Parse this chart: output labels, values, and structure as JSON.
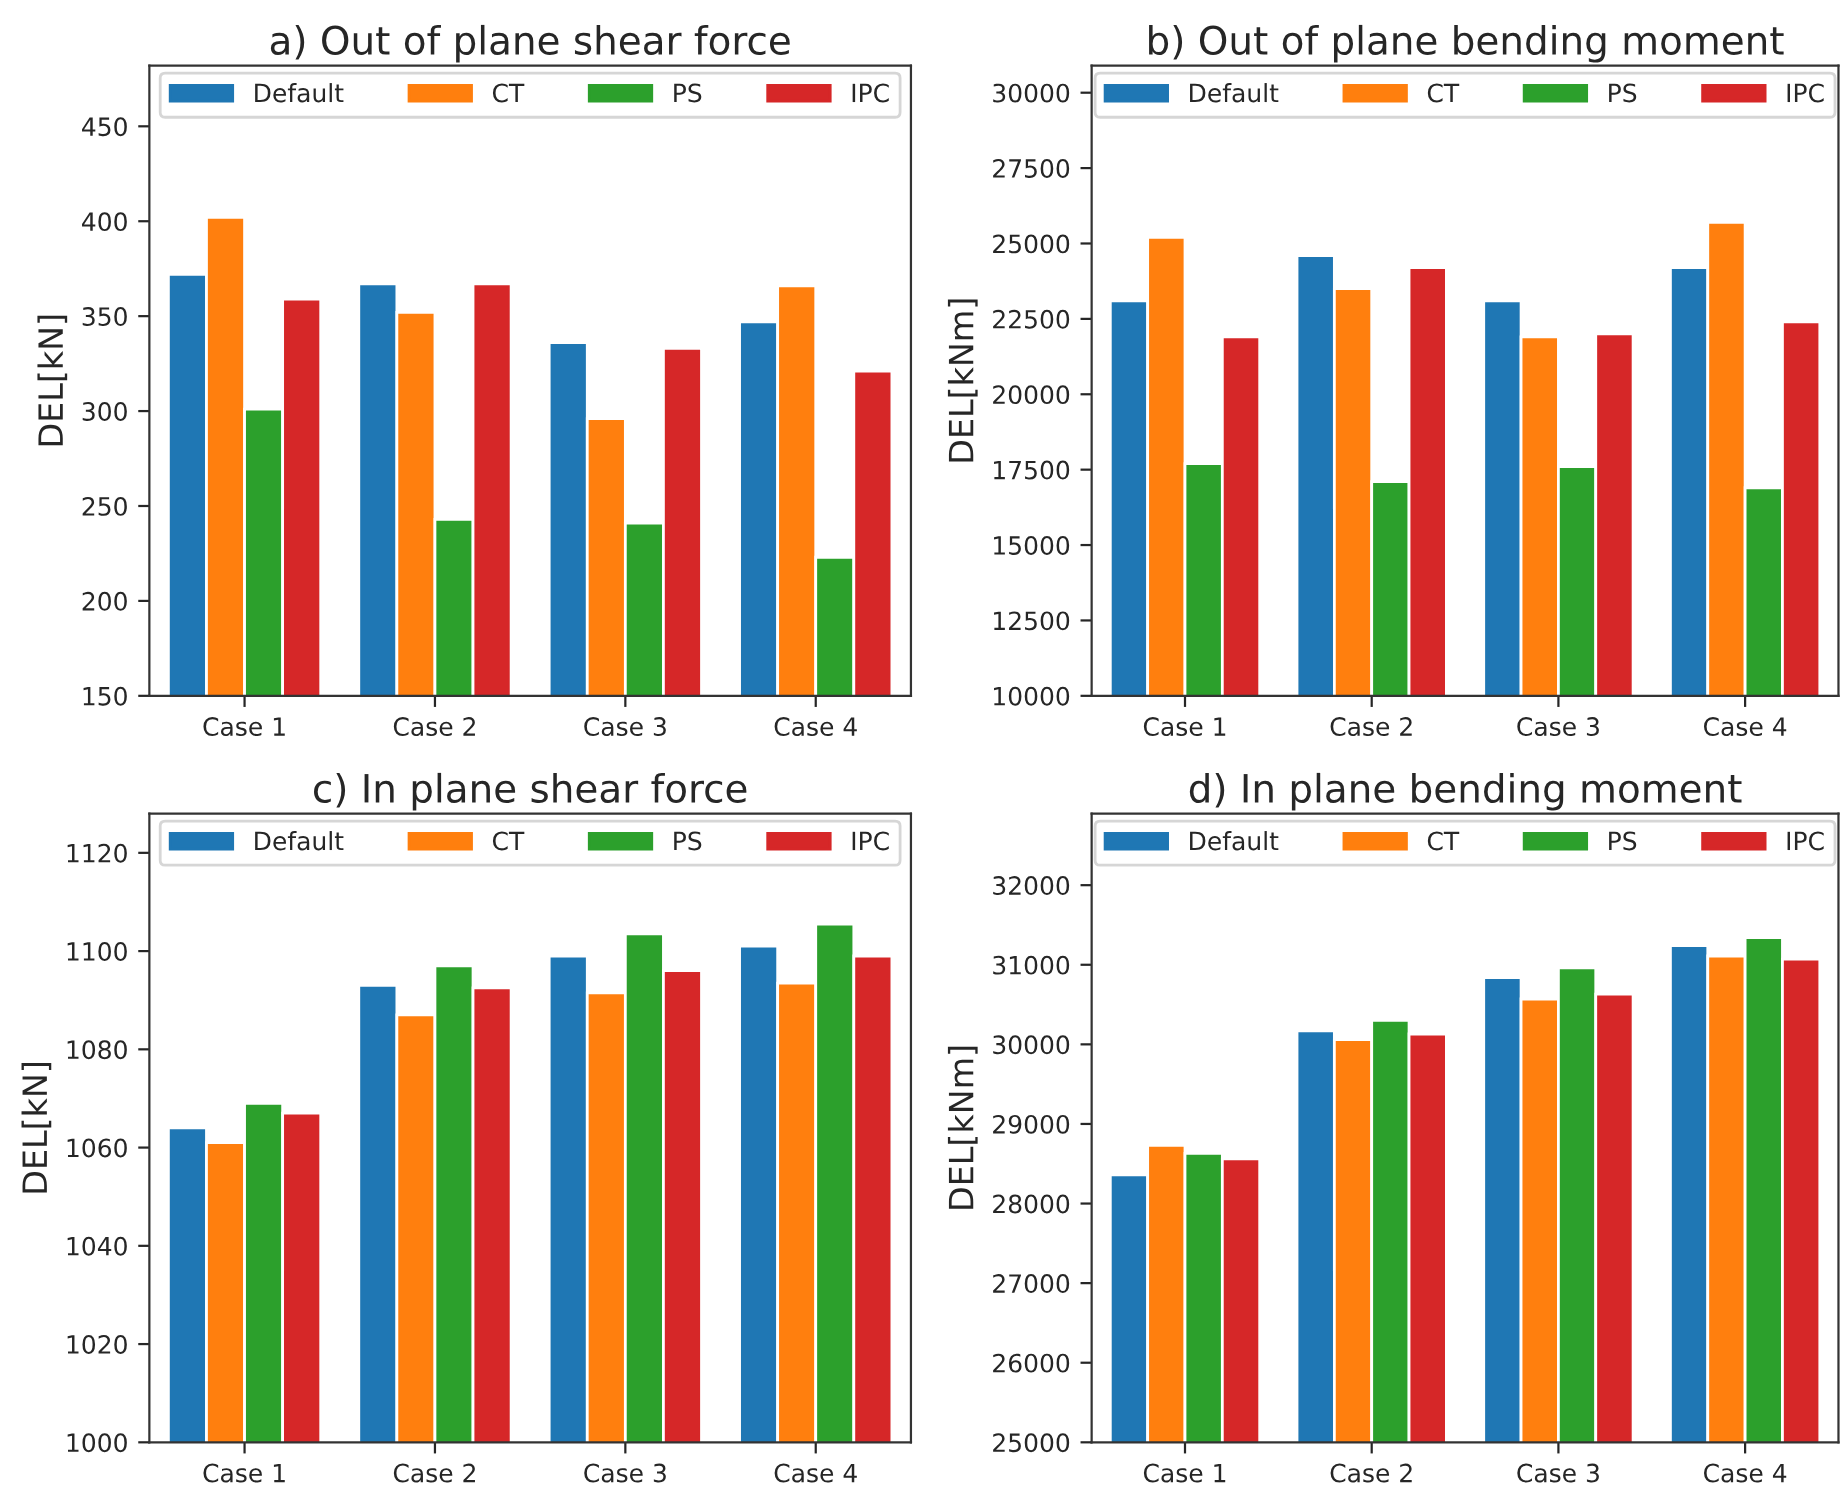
{
  "chart_data": [
    {
      "type": "bar",
      "title": "a) Out of plane shear force",
      "ylabel": "DEL[kN]",
      "categories": [
        "Case 1",
        "Case 2",
        "Case 3",
        "Case 4"
      ],
      "ylim": [
        150,
        482
      ],
      "yticks": [
        150,
        200,
        250,
        300,
        350,
        400,
        450
      ],
      "legend": "top",
      "grid": false,
      "series": [
        {
          "name": "Default",
          "color": "#1f77b4",
          "values": [
            372,
            367,
            336,
            347
          ]
        },
        {
          "name": "CT",
          "color": "#ff7f0e",
          "values": [
            402,
            352,
            296,
            366
          ]
        },
        {
          "name": "PS",
          "color": "#2ca02c",
          "values": [
            301,
            243,
            241,
            223
          ]
        },
        {
          "name": "IPC",
          "color": "#d62728",
          "values": [
            359,
            367,
            333,
            321
          ]
        }
      ]
    },
    {
      "type": "bar",
      "title": "b) Out of plane bending moment",
      "ylabel": "DEL[kNm]",
      "categories": [
        "Case 1",
        "Case 2",
        "Case 3",
        "Case 4"
      ],
      "ylim": [
        10000,
        30900
      ],
      "yticks": [
        10000,
        12500,
        15000,
        17500,
        20000,
        22500,
        25000,
        27500,
        30000
      ],
      "legend": "top",
      "grid": false,
      "series": [
        {
          "name": "Default",
          "color": "#1f77b4",
          "values": [
            23100,
            24600,
            23100,
            24200
          ]
        },
        {
          "name": "CT",
          "color": "#ff7f0e",
          "values": [
            25200,
            23500,
            21900,
            25700
          ]
        },
        {
          "name": "PS",
          "color": "#2ca02c",
          "values": [
            17700,
            17100,
            17600,
            16900
          ]
        },
        {
          "name": "IPC",
          "color": "#d62728",
          "values": [
            21900,
            24200,
            22000,
            22400
          ]
        }
      ]
    },
    {
      "type": "bar",
      "title": "c) In plane shear force",
      "ylabel": "DEL[kN]",
      "categories": [
        "Case 1",
        "Case 2",
        "Case 3",
        "Case 4"
      ],
      "ylim": [
        1000,
        1128
      ],
      "yticks": [
        1000,
        1020,
        1040,
        1060,
        1080,
        1100,
        1120
      ],
      "legend": "top",
      "grid": false,
      "series": [
        {
          "name": "Default",
          "color": "#1f77b4",
          "values": [
            1064,
            1093,
            1099,
            1101
          ]
        },
        {
          "name": "CT",
          "color": "#ff7f0e",
          "values": [
            1061,
            1087,
            1091.5,
            1093.5
          ]
        },
        {
          "name": "PS",
          "color": "#2ca02c",
          "values": [
            1069,
            1097,
            1103.5,
            1105.5
          ]
        },
        {
          "name": "IPC",
          "color": "#d62728",
          "values": [
            1067,
            1092.5,
            1096,
            1099
          ]
        }
      ]
    },
    {
      "type": "bar",
      "title": "d) In plane bending moment",
      "ylabel": "DEL[kNm]",
      "categories": [
        "Case 1",
        "Case 2",
        "Case 3",
        "Case 4"
      ],
      "ylim": [
        25000,
        32900
      ],
      "yticks": [
        25000,
        26000,
        27000,
        28000,
        29000,
        30000,
        31000,
        32000
      ],
      "legend": "top",
      "grid": false,
      "series": [
        {
          "name": "Default",
          "color": "#1f77b4",
          "values": [
            28360,
            30170,
            30840,
            31240
          ]
        },
        {
          "name": "CT",
          "color": "#ff7f0e",
          "values": [
            28730,
            30060,
            30570,
            31110
          ]
        },
        {
          "name": "PS",
          "color": "#2ca02c",
          "values": [
            28630,
            30300,
            30960,
            31340
          ]
        },
        {
          "name": "IPC",
          "color": "#d62728",
          "values": [
            28560,
            30130,
            30630,
            31070
          ]
        }
      ]
    }
  ]
}
